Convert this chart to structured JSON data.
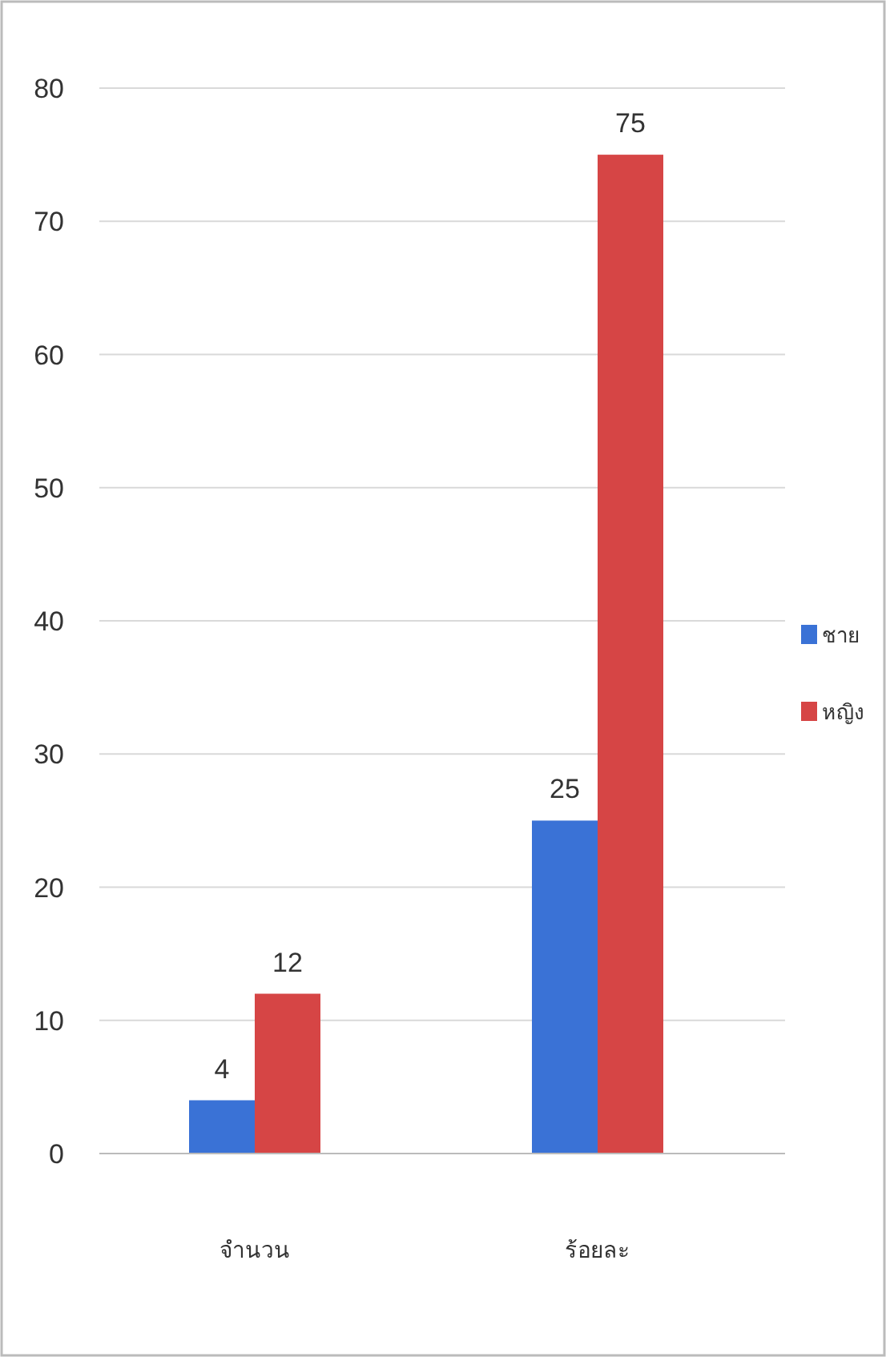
{
  "chart_data": {
    "type": "bar",
    "categories": [
      "จำนวน",
      "ร้อยละ"
    ],
    "series": [
      {
        "name": "ชาย",
        "color": "#3a72d6",
        "values": [
          4,
          25
        ]
      },
      {
        "name": "หญิง",
        "color": "#d64545",
        "values": [
          12,
          75
        ]
      }
    ],
    "ylim": [
      0,
      80
    ],
    "yticks": [
      0,
      10,
      20,
      30,
      40,
      50,
      60,
      70,
      80
    ],
    "grid": "y",
    "legend": "right",
    "data_labels": true
  }
}
